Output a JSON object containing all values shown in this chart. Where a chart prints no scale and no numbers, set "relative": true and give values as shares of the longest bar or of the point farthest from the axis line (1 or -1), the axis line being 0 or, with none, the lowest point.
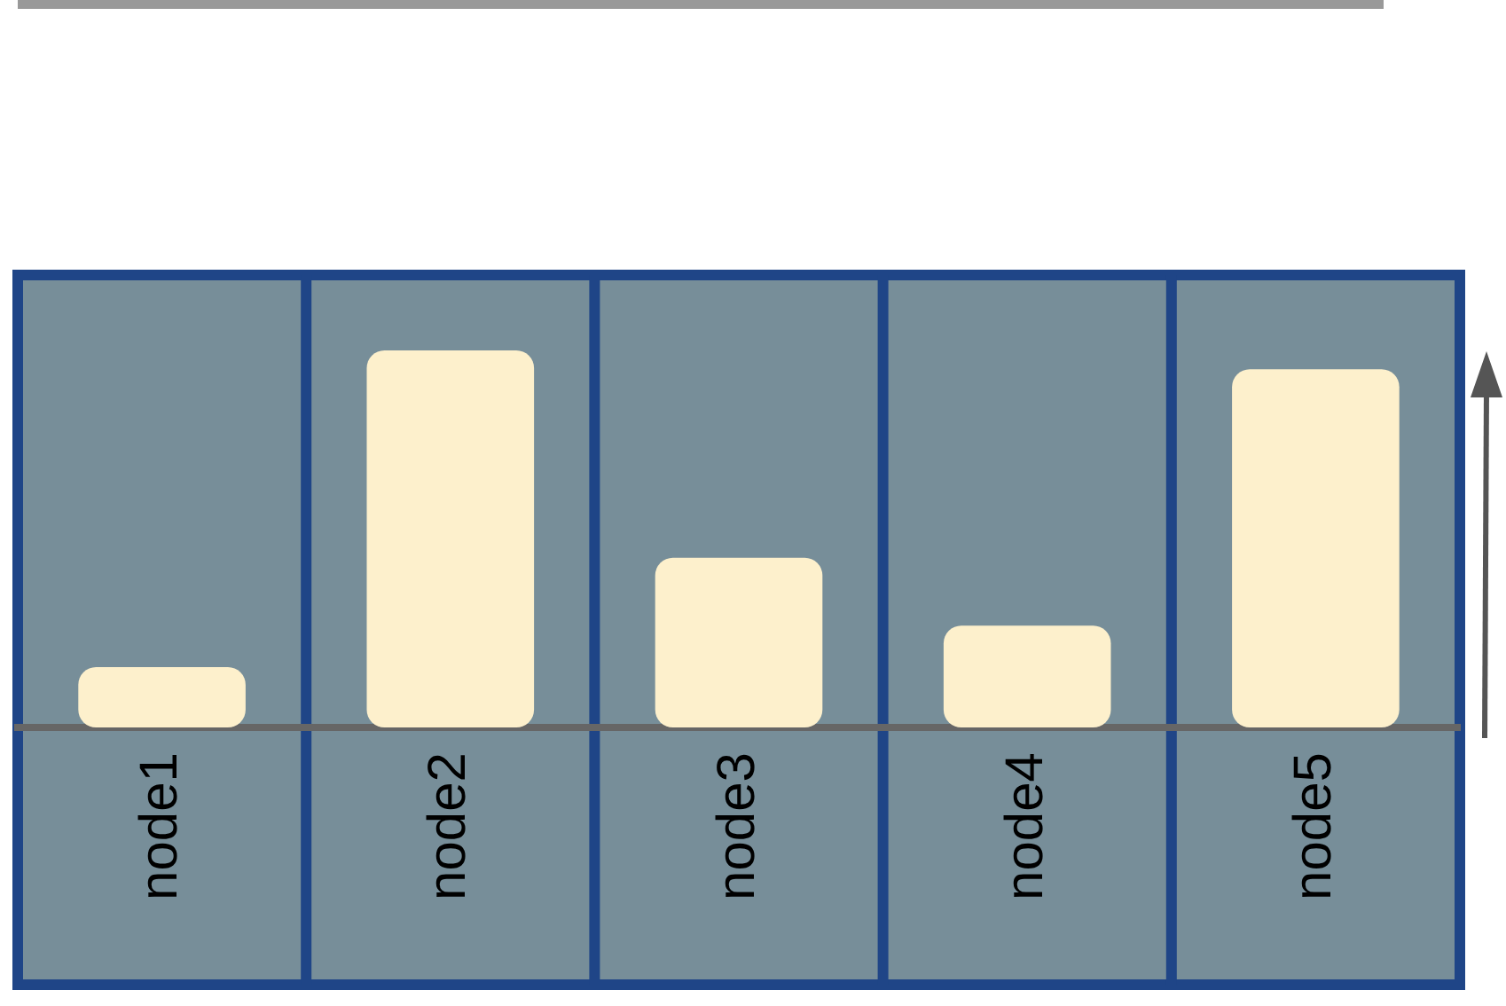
{
  "chart_data": {
    "type": "bar",
    "relative": true,
    "categories": [
      "node1",
      "node2",
      "node3",
      "node4",
      "node5"
    ],
    "values": [
      0.16,
      1,
      0.45,
      0.27,
      0.95
    ],
    "color": "#fdf0cc"
  }
}
